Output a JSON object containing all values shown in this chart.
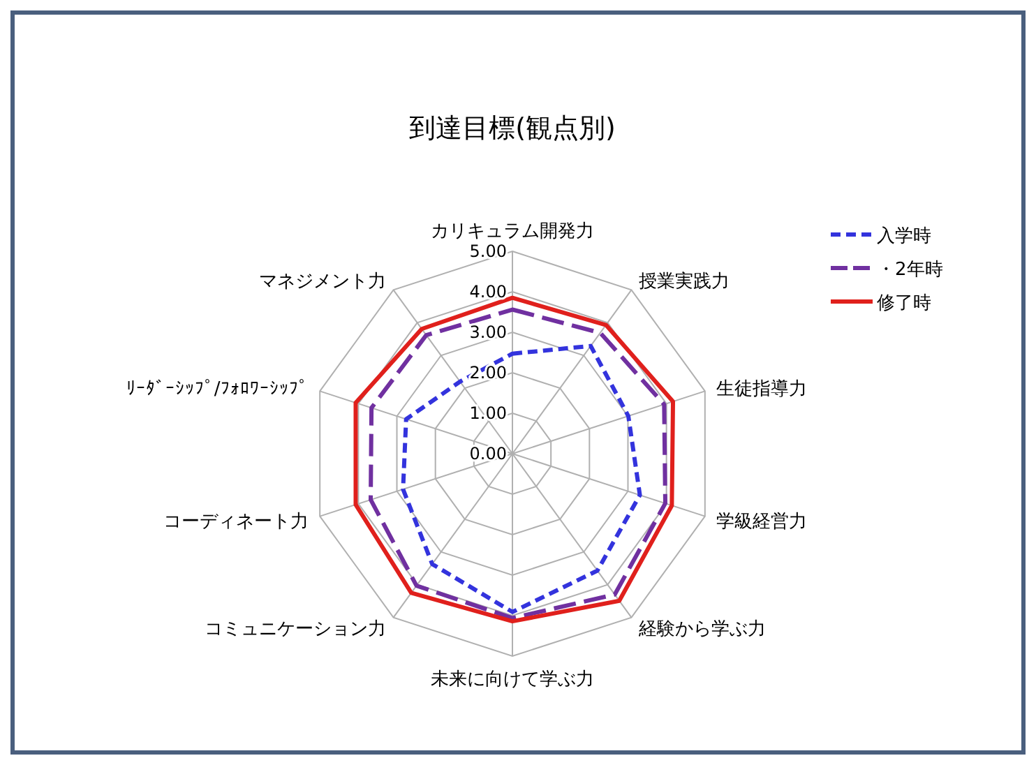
{
  "chart_data": {
    "type": "radar",
    "title": "到達目標(観点別)",
    "categories": [
      "カリキュラム開発力",
      "授業実践力",
      "生徒指導力",
      "学級経営力",
      "経験から学ぶ力",
      "未来に向けて学ぶ力",
      "コミュニケーション力",
      "コーディネート力",
      "ﾘｰﾀﾞｰｼｯﾌﾟ/ﾌｫﾛﾜｰｼｯﾌﾟ",
      "マネジメント力"
    ],
    "series": [
      {
        "name": "入学時",
        "color": "#3333dd",
        "line_style": "dashed",
        "values": [
          2.47,
          3.29,
          3.01,
          3.31,
          3.57,
          3.91,
          3.37,
          2.84,
          2.76,
          2.2
        ]
      },
      {
        "name": "・2年時",
        "color": "#7030a0",
        "line_style": "longdash",
        "values": [
          3.56,
          3.69,
          3.94,
          3.97,
          4.3,
          4.06,
          4.03,
          3.68,
          3.66,
          3.62
        ]
      },
      {
        "name": "修了時",
        "color": "#e0201c",
        "line_style": "solid",
        "values": [
          3.85,
          3.93,
          4.17,
          4.14,
          4.49,
          4.14,
          4.25,
          4.07,
          4.07,
          3.81
        ]
      }
    ],
    "ylim": [
      0,
      5
    ],
    "yticks": [
      {
        "value": 0,
        "label": "0.00"
      },
      {
        "value": 1,
        "label": "1.00"
      },
      {
        "value": 2,
        "label": "2.00"
      },
      {
        "value": 3,
        "label": "3.00"
      },
      {
        "value": 4,
        "label": "4.00"
      },
      {
        "value": 5,
        "label": "5.00"
      }
    ],
    "grid": true,
    "legend": "top right",
    "marker": "none"
  }
}
